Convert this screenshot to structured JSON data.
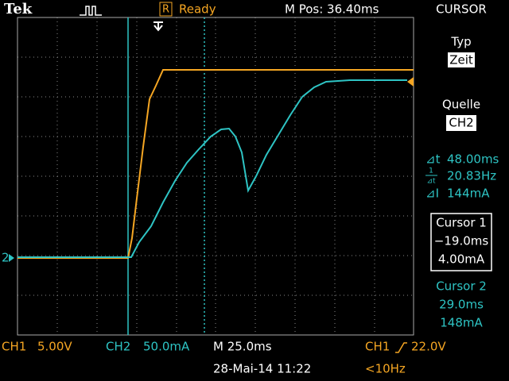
{
  "header": {
    "brand": "Tek",
    "status_flag": "R",
    "status": "Ready",
    "position": "M Pos: 36.40ms"
  },
  "side_panel": {
    "title": "CURSOR",
    "type_label": "Typ",
    "type_value": "Zeit",
    "source_label": "Quelle",
    "source_value": "CH2",
    "measurements": [
      {
        "label": "⊿t",
        "value": "48.00ms"
      },
      {
        "label_top": "1",
        "label_bottom": "⊿t",
        "value": "20.83Hz"
      },
      {
        "label": "⊿I",
        "value": "144mA"
      }
    ],
    "cursor1": {
      "title": "Cursor 1",
      "time": "−19.0ms",
      "level": "4.00mA"
    },
    "cursor2": {
      "title": "Cursor 2",
      "time": "29.0ms",
      "level": "148mA"
    }
  },
  "channel_marker": "2",
  "footer": {
    "ch1_label": "CH1",
    "ch1_scale": "5.00V",
    "ch2_label": "CH2",
    "ch2_scale": "50.0mA",
    "timebase": "M 25.0ms",
    "date": "28-Mai-14 11:22",
    "trigger_source": "CH1",
    "trigger_level": "22.0V",
    "trigger_freq": "<10Hz"
  }
}
